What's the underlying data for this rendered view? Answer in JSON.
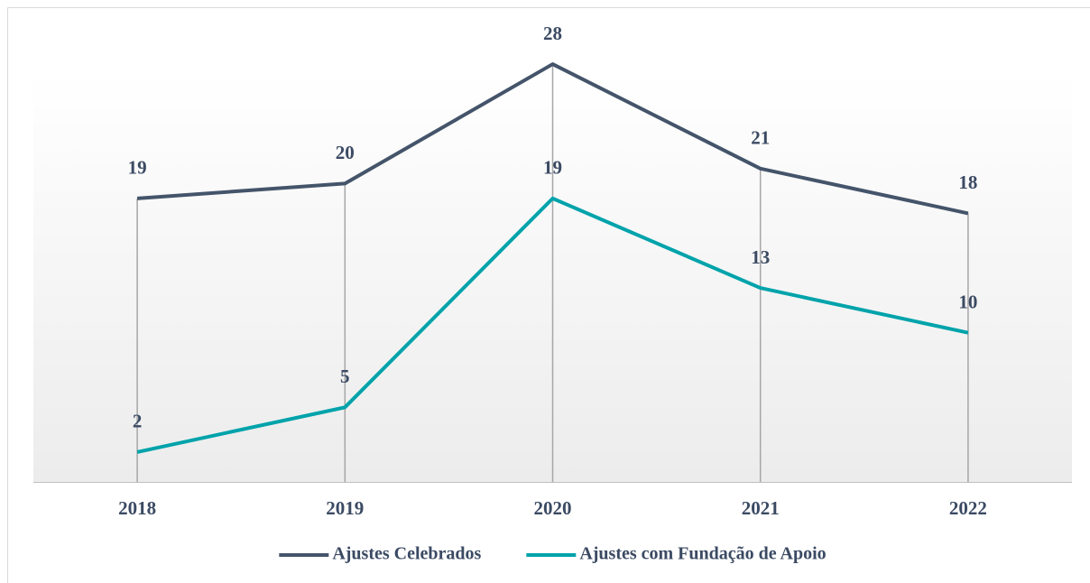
{
  "chart_data": {
    "type": "line",
    "categories": [
      "2018",
      "2019",
      "2020",
      "2021",
      "2022"
    ],
    "series": [
      {
        "name": "Ajustes Celebrados",
        "color": "#44546a",
        "values": [
          19,
          20,
          28,
          21,
          18
        ]
      },
      {
        "name": "Ajustes com Fundação de Apoio",
        "color": "#00a3ab",
        "values": [
          2,
          5,
          19,
          13,
          10
        ]
      }
    ],
    "ylim": [
      0,
      30
    ],
    "drop_lines": true,
    "data_labels": true,
    "legend": "bottom"
  }
}
